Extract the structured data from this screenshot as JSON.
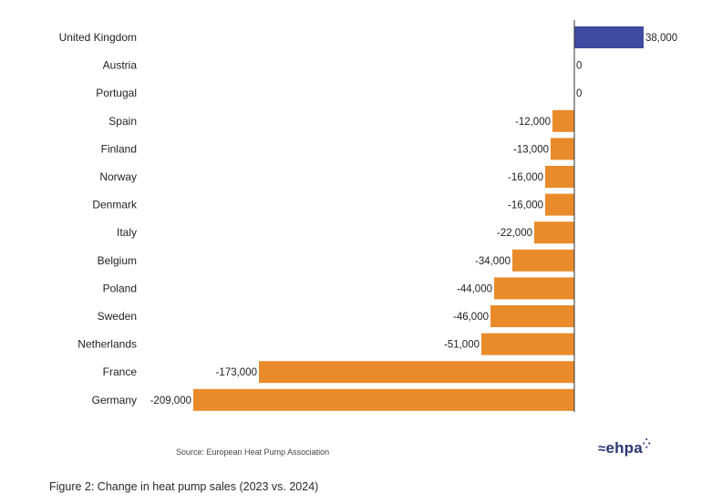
{
  "chart_data": {
    "type": "bar",
    "orientation": "horizontal",
    "categories": [
      "United Kingdom",
      "Austria",
      "Portugal",
      "Spain",
      "Finland",
      "Norway",
      "Denmark",
      "Italy",
      "Belgium",
      "Poland",
      "Sweden",
      "Netherlands",
      "France",
      "Germany"
    ],
    "values": [
      38000,
      0,
      0,
      -12000,
      -13000,
      -16000,
      -16000,
      -22000,
      -34000,
      -44000,
      -46000,
      -51000,
      -173000,
      -209000
    ],
    "value_labels": [
      "38,000",
      "0",
      "0",
      "-12,000",
      "-13,000",
      "-16,000",
      "-16,000",
      "-22,000",
      "-34,000",
      "-44,000",
      "-46,000",
      "-51,000",
      "-173,000",
      "-209,000"
    ],
    "xlim": [
      -220000,
      40000
    ],
    "grid": false,
    "legend": "none",
    "colors": {
      "positive": "#3f4aa1",
      "negative": "#e98b2a",
      "axis": "#333333"
    }
  },
  "source_text": "Source: European Heat Pump Association",
  "logo_text": "ehpa",
  "logo_waves_icon": "≈",
  "caption": "Figure 2: Change in heat pump sales (2023 vs. 2024)"
}
